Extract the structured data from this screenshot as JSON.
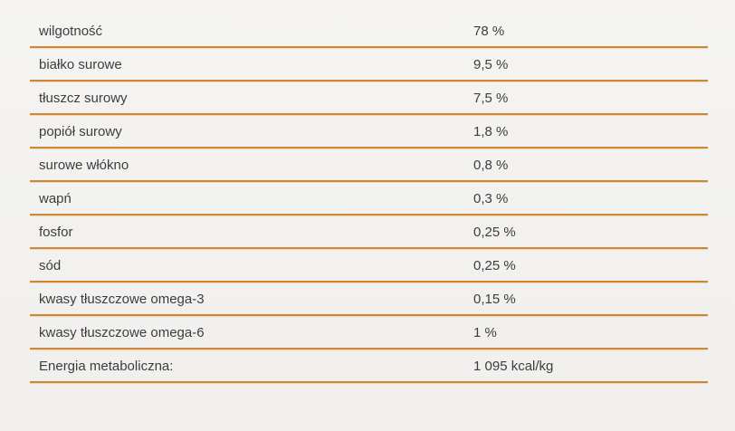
{
  "colors": {
    "background": "#f2f1ef",
    "separator": "#cd873b",
    "separator_light": "#f0d9b2",
    "text": "#3d3d3d"
  },
  "table": {
    "rows": [
      {
        "label": "wilgotność",
        "value": "78 %"
      },
      {
        "label": "białko surowe",
        "value": "9,5 %"
      },
      {
        "label": "tłuszcz surowy",
        "value": "7,5 %"
      },
      {
        "label": "popiół surowy",
        "value": "1,8 %"
      },
      {
        "label": "surowe włókno",
        "value": "0,8 %"
      },
      {
        "label": "wapń",
        "value": "0,3 %"
      },
      {
        "label": "fosfor",
        "value": "0,25 %"
      },
      {
        "label": "sód",
        "value": "0,25 %"
      },
      {
        "label": "kwasy tłuszczowe omega-3",
        "value": "0,15 %"
      },
      {
        "label": "kwasy tłuszczowe omega-6",
        "value": "1 %"
      },
      {
        "label": "Energia metaboliczna:",
        "value": "1 095 kcal/kg"
      }
    ]
  },
  "chart_data": {
    "type": "table",
    "title": "",
    "columns": [
      "parameter",
      "value"
    ],
    "rows": [
      [
        "wilgotność",
        "78 %"
      ],
      [
        "białko surowe",
        "9,5 %"
      ],
      [
        "tłuszcz surowy",
        "7,5 %"
      ],
      [
        "popiół surowy",
        "1,8 %"
      ],
      [
        "surowe włókno",
        "0,8 %"
      ],
      [
        "wapń",
        "0,3 %"
      ],
      [
        "fosfor",
        "0,25 %"
      ],
      [
        "sód",
        "0,25 %"
      ],
      [
        "kwasy tłuszczowe omega-3",
        "0,15 %"
      ],
      [
        "kwasy tłuszczowe omega-6",
        "1 %"
      ],
      [
        "Energia metaboliczna:",
        "1 095 kcal/kg"
      ]
    ]
  }
}
